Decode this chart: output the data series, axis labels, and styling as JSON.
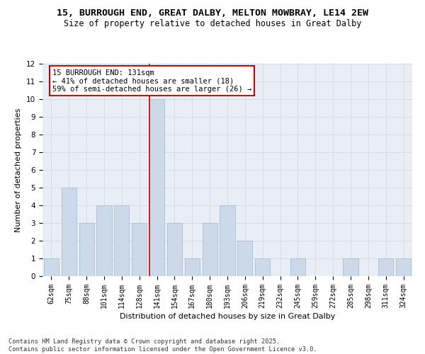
{
  "title_line1": "15, BURROUGH END, GREAT DALBY, MELTON MOWBRAY, LE14 2EW",
  "title_line2": "Size of property relative to detached houses in Great Dalby",
  "xlabel": "Distribution of detached houses by size in Great Dalby",
  "ylabel": "Number of detached properties",
  "categories": [
    "62sqm",
    "75sqm",
    "88sqm",
    "101sqm",
    "114sqm",
    "128sqm",
    "141sqm",
    "154sqm",
    "167sqm",
    "180sqm",
    "193sqm",
    "206sqm",
    "219sqm",
    "232sqm",
    "245sqm",
    "259sqm",
    "272sqm",
    "285sqm",
    "298sqm",
    "311sqm",
    "324sqm"
  ],
  "values": [
    1,
    5,
    3,
    4,
    4,
    3,
    10,
    3,
    1,
    3,
    4,
    2,
    1,
    0,
    1,
    0,
    0,
    1,
    0,
    1,
    1
  ],
  "bar_color": "#ccd9e8",
  "bar_edge_color": "#a0b8d0",
  "highlight_index": 6,
  "highlight_line_color": "#cc0000",
  "annotation_text": "15 BURROUGH END: 131sqm\n← 41% of detached houses are smaller (18)\n59% of semi-detached houses are larger (26) →",
  "annotation_box_color": "#ffffff",
  "annotation_box_edge": "#cc0000",
  "ylim": [
    0,
    12
  ],
  "yticks": [
    0,
    1,
    2,
    3,
    4,
    5,
    6,
    7,
    8,
    9,
    10,
    11,
    12
  ],
  "grid_color": "#d0d8e0",
  "bg_color": "#e8eef4",
  "footer": "Contains HM Land Registry data © Crown copyright and database right 2025.\nContains public sector information licensed under the Open Government Licence v3.0.",
  "title_fontsize": 9.5,
  "subtitle_fontsize": 8.5,
  "axis_label_fontsize": 8,
  "tick_fontsize": 7,
  "annotation_fontsize": 7.5,
  "footer_fontsize": 6.2
}
